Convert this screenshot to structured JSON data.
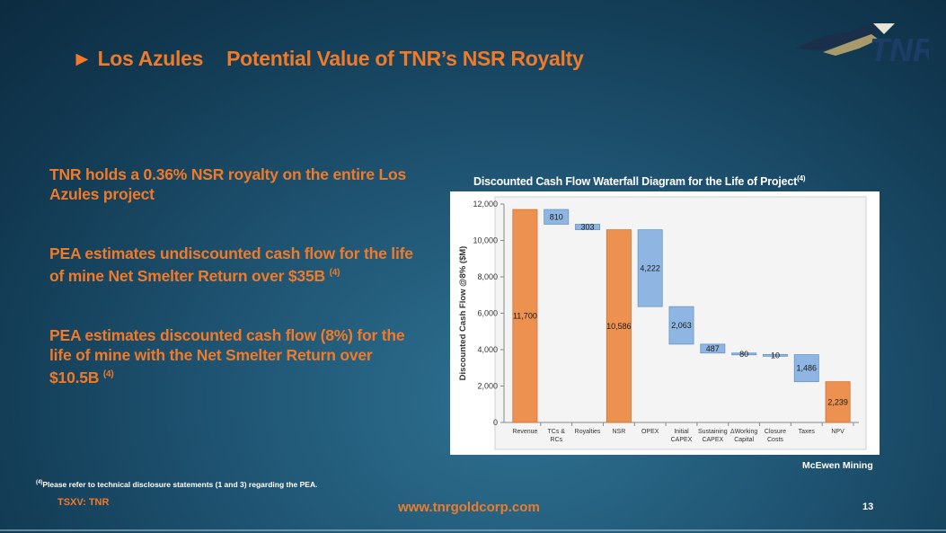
{
  "slide": {
    "title_marker": "►",
    "title_part1": "Los Azules",
    "title_part2": "Potential Value of TNR’s NSR Royalty",
    "logo_text": "TNR"
  },
  "bullets": [
    {
      "text": "TNR holds a 0.36% NSR royalty on the entire Los Azules project",
      "sup": ""
    },
    {
      "text": "PEA estimates undiscounted cash flow for the life of mine Net Smelter Return over $35B",
      "sup": "(4)"
    },
    {
      "text": "PEA estimates discounted cash flow (8%) for the life of mine with the Net Smelter Return over $10.5B",
      "sup": "(4)"
    }
  ],
  "chart_title": "Discounted Cash Flow Waterfall Diagram for the Life of Project",
  "chart_title_sup": "(4)",
  "chart_data": {
    "type": "bar",
    "subtype": "waterfall",
    "ylabel": "Discounted Cash Flow @8% ($M)",
    "xlabel": "",
    "ylim": [
      0,
      12000
    ],
    "yticks": [
      0,
      2000,
      4000,
      6000,
      8000,
      10000,
      12000
    ],
    "ytick_labels": [
      "0",
      "2,000",
      "4,000",
      "6,000",
      "8,000",
      "10,000",
      "12,000"
    ],
    "grid": false,
    "categories": [
      [
        "Revenue"
      ],
      [
        "TCs &",
        "RCs"
      ],
      [
        "Royalties"
      ],
      [
        "NSR"
      ],
      [
        "OPEX"
      ],
      [
        "Initial",
        "CAPEX"
      ],
      [
        "Sustaining",
        "CAPEX"
      ],
      [
        "ΔWorking",
        "Capital"
      ],
      [
        "Closure",
        "Costs"
      ],
      [
        "Taxes"
      ],
      [
        "NPV"
      ]
    ],
    "bars": [
      {
        "kind": "total",
        "start": 0,
        "end": 11700,
        "label": "11,700"
      },
      {
        "kind": "delta",
        "start": 11700,
        "end": 10890,
        "label": "810"
      },
      {
        "kind": "delta",
        "start": 10890,
        "end": 10587,
        "label": "303"
      },
      {
        "kind": "total",
        "start": 0,
        "end": 10586,
        "label": "10,586"
      },
      {
        "kind": "delta",
        "start": 10586,
        "end": 6364,
        "label": "4,222"
      },
      {
        "kind": "delta",
        "start": 6364,
        "end": 4301,
        "label": "2,063"
      },
      {
        "kind": "delta",
        "start": 4301,
        "end": 3814,
        "label": "487"
      },
      {
        "kind": "delta",
        "start": 3814,
        "end": 3734,
        "label": "80"
      },
      {
        "kind": "delta",
        "start": 3734,
        "end": 3724,
        "label": "10"
      },
      {
        "kind": "delta",
        "start": 3724,
        "end": 2238,
        "label": "1,486"
      },
      {
        "kind": "total",
        "start": 0,
        "end": 2239,
        "label": "2,239"
      }
    ],
    "colors": {
      "total": "#ec9150",
      "delta": "#8fb6e2",
      "total_edge": "#c9733a",
      "delta_edge": "#6b95c4"
    }
  },
  "source": "McEwen Mining",
  "footnote_sup": "(4)",
  "footnote": "Please refer to technical disclosure statements (1 and 3) regarding the PEA.",
  "ticker": "TSXV: TNR",
  "website": "www.tnrgoldcorp.com",
  "page_number": "13",
  "colors": {
    "accent": "#f07a28",
    "background": "#1f5573"
  }
}
